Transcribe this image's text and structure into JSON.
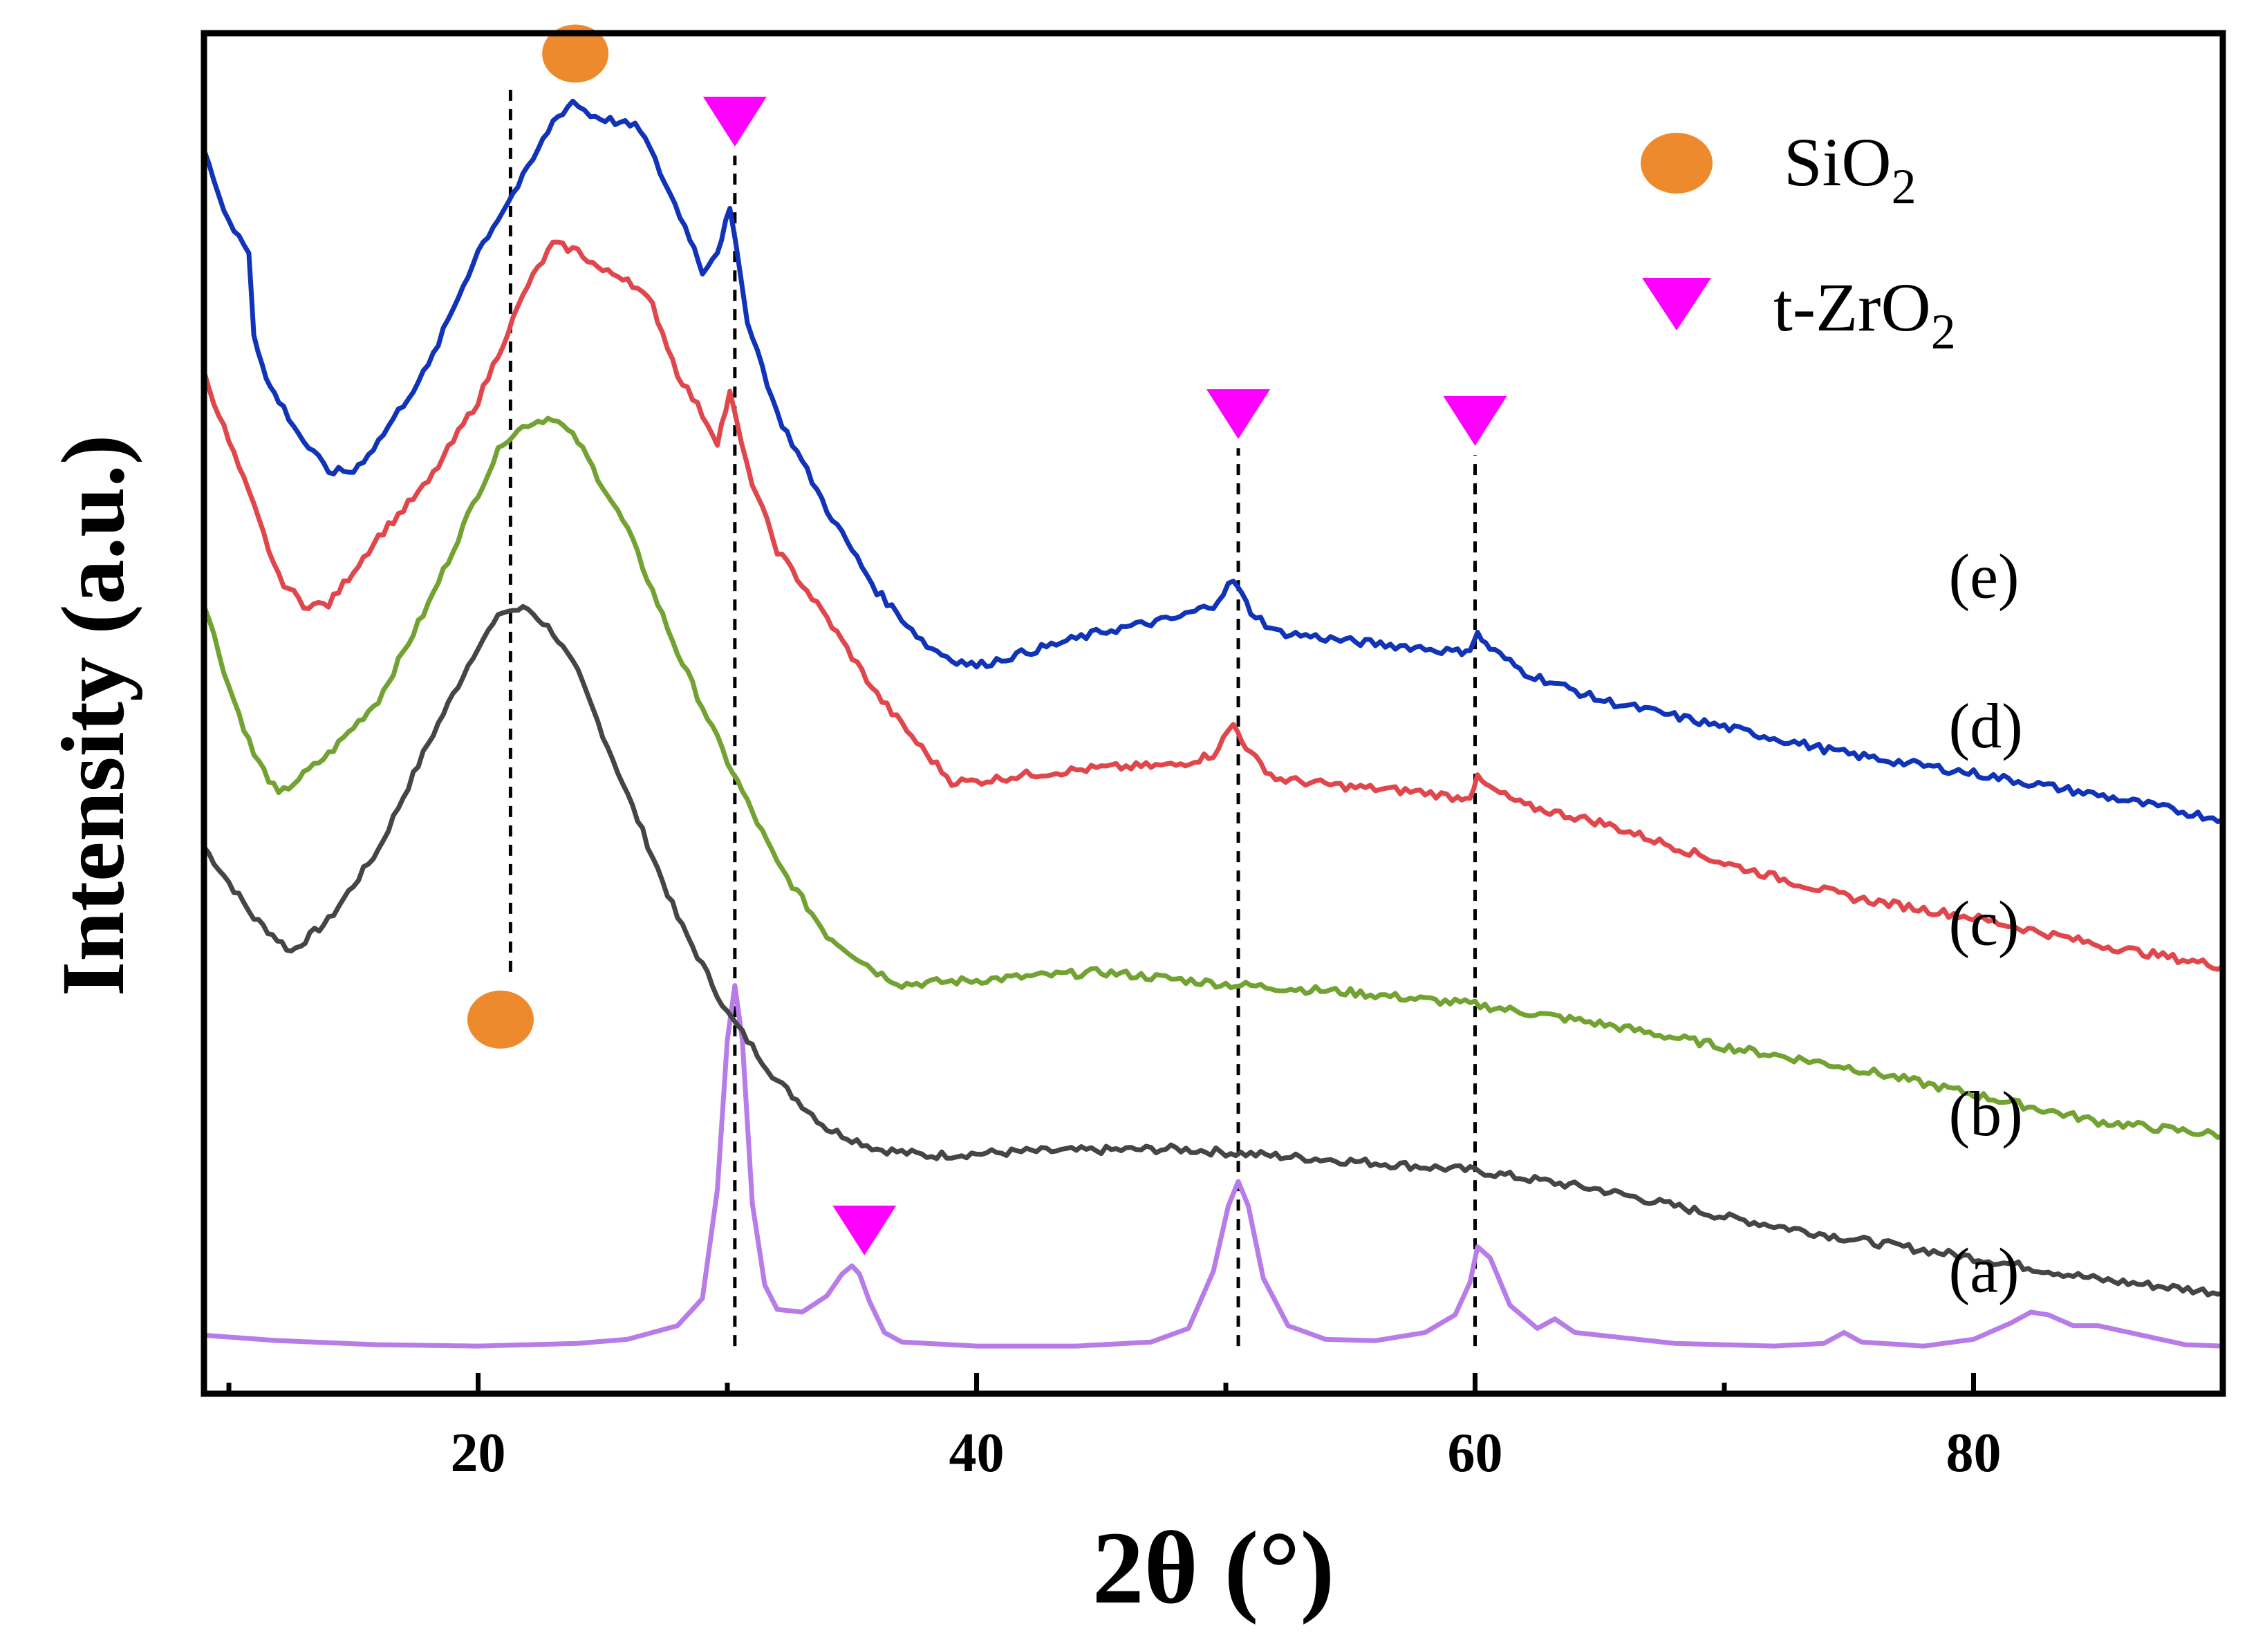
{
  "chart_data": {
    "type": "line",
    "title": "",
    "xlabel": "2θ (°)",
    "ylabel": "Intensity (a.u.)",
    "xlim": [
      9,
      90
    ],
    "ylim": [
      0,
      1
    ],
    "x_ticks": [
      20,
      40,
      60,
      80
    ],
    "x_tick_labels": [
      "20",
      "40",
      "60",
      "80"
    ],
    "y_ticks_visible": false,
    "legend": {
      "position": "top-right",
      "entries": [
        {
          "marker": "circle",
          "color": "#EE8A2E",
          "label_main": "SiO",
          "label_sub": "2"
        },
        {
          "marker": "triangle-down",
          "color": "#FF00FF",
          "label_main": "t-ZrO",
          "label_sub": "2"
        }
      ]
    },
    "colors": {
      "a": "#B77CE8",
      "b": "#454545",
      "c": "#72A332",
      "d": "#E0474C",
      "e": "#1133B8",
      "sio2_marker": "#EE8A2E",
      "zro2_marker": "#FF00FF",
      "frame": "#000000"
    },
    "series": [
      {
        "name": "(a)",
        "color": "#B77CE8",
        "x": [
          9,
          12,
          16,
          20,
          24,
          26,
          28,
          29,
          29.6,
          30,
          30.3,
          30.6,
          31,
          31.5,
          32,
          33,
          34,
          34.6,
          35,
          35.3,
          35.7,
          36.3,
          37,
          40,
          44,
          47,
          48.5,
          49.5,
          50.1,
          50.5,
          50.9,
          51.5,
          52.5,
          54,
          56,
          58,
          59.2,
          59.8,
          60.1,
          60.6,
          61.4,
          62.5,
          63.2,
          64,
          68,
          72,
          74,
          74.8,
          75.5,
          78,
          80,
          81.5,
          82.3,
          83,
          84,
          85,
          87,
          88.5,
          90
        ],
        "y": [
          0.043,
          0.039,
          0.036,
          0.035,
          0.037,
          0.04,
          0.05,
          0.07,
          0.15,
          0.26,
          0.3,
          0.26,
          0.14,
          0.08,
          0.062,
          0.06,
          0.072,
          0.088,
          0.094,
          0.088,
          0.068,
          0.045,
          0.038,
          0.035,
          0.035,
          0.038,
          0.048,
          0.09,
          0.138,
          0.156,
          0.138,
          0.085,
          0.05,
          0.04,
          0.039,
          0.045,
          0.058,
          0.082,
          0.108,
          0.1,
          0.065,
          0.048,
          0.055,
          0.045,
          0.037,
          0.035,
          0.037,
          0.045,
          0.038,
          0.035,
          0.04,
          0.052,
          0.06,
          0.058,
          0.05,
          0.05,
          0.042,
          0.036,
          0.035
        ]
      },
      {
        "name": "(b)",
        "color": "#454545",
        "x": [
          9,
          11,
          12.5,
          14,
          16,
          18,
          20,
          21,
          22,
          23,
          24,
          26,
          28,
          30,
          32,
          34,
          36,
          38,
          42,
          48,
          55,
          60,
          65,
          70,
          75,
          80,
          85,
          90
        ],
        "y": [
          0.402,
          0.35,
          0.325,
          0.348,
          0.4,
          0.478,
          0.55,
          0.575,
          0.577,
          0.56,
          0.53,
          0.44,
          0.35,
          0.28,
          0.23,
          0.195,
          0.18,
          0.175,
          0.178,
          0.18,
          0.171,
          0.164,
          0.15,
          0.13,
          0.114,
          0.1,
          0.084,
          0.074
        ]
      },
      {
        "name": "(c)",
        "color": "#72A332",
        "x": [
          9,
          10,
          11,
          12,
          13,
          14,
          16,
          18,
          20,
          21,
          22,
          23,
          24,
          26,
          28,
          30,
          32,
          34,
          36,
          37,
          40,
          45,
          50,
          55,
          60,
          65,
          70,
          75,
          80,
          85,
          90
        ],
        "y": [
          0.582,
          0.52,
          0.47,
          0.44,
          0.455,
          0.47,
          0.51,
          0.58,
          0.662,
          0.7,
          0.713,
          0.718,
          0.7,
          0.635,
          0.545,
          0.465,
          0.39,
          0.337,
          0.31,
          0.301,
          0.304,
          0.31,
          0.301,
          0.295,
          0.286,
          0.272,
          0.255,
          0.24,
          0.22,
          0.2,
          0.19
        ]
      },
      {
        "name": "(d)",
        "color": "#E0474C",
        "x": [
          9,
          10,
          11,
          12,
          13,
          14,
          16,
          18,
          20,
          22,
          23,
          24,
          25,
          26,
          27,
          28,
          29,
          29.6,
          30.1,
          30.8,
          32,
          34,
          36,
          38,
          39,
          40,
          42,
          45,
          48,
          49.5,
          50.3,
          51,
          52,
          55,
          58,
          59.3,
          59.8,
          60.1,
          60.6,
          62,
          65,
          70,
          75,
          80,
          85,
          90
        ],
        "y": [
          0.75,
          0.7,
          0.652,
          0.6,
          0.58,
          0.58,
          0.63,
          0.67,
          0.73,
          0.815,
          0.845,
          0.84,
          0.825,
          0.82,
          0.8,
          0.75,
          0.72,
          0.7,
          0.735,
          0.68,
          0.62,
          0.57,
          0.514,
          0.47,
          0.45,
          0.45,
          0.455,
          0.46,
          0.462,
          0.47,
          0.492,
          0.47,
          0.452,
          0.446,
          0.442,
          0.438,
          0.44,
          0.452,
          0.445,
          0.432,
          0.42,
          0.39,
          0.365,
          0.35,
          0.33,
          0.314
        ]
      },
      {
        "name": "(e)",
        "color": "#1133B8",
        "x": [
          9,
          10,
          10.8,
          11,
          11.5,
          12,
          13,
          14,
          15,
          16,
          18,
          20,
          21,
          22,
          23,
          23.8,
          24.5,
          25.5,
          26.5,
          27.5,
          28.5,
          29,
          29.6,
          30.1,
          30.8,
          32,
          34,
          36,
          38,
          39,
          40,
          42,
          45,
          48,
          49.5,
          50.3,
          51,
          52,
          55,
          58,
          59.3,
          59.8,
          60.1,
          60.6,
          62,
          65,
          70,
          75,
          80,
          85,
          90
        ],
        "y": [
          0.915,
          0.86,
          0.84,
          0.78,
          0.745,
          0.73,
          0.7,
          0.678,
          0.678,
          0.7,
          0.755,
          0.84,
          0.87,
          0.9,
          0.935,
          0.95,
          0.94,
          0.935,
          0.93,
          0.89,
          0.85,
          0.825,
          0.84,
          0.87,
          0.79,
          0.72,
          0.65,
          0.59,
          0.55,
          0.54,
          0.535,
          0.545,
          0.56,
          0.57,
          0.58,
          0.598,
          0.575,
          0.56,
          0.553,
          0.548,
          0.545,
          0.548,
          0.558,
          0.548,
          0.53,
          0.51,
          0.49,
          0.47,
          0.456,
          0.44,
          0.422
        ]
      }
    ],
    "curve_labels": [
      {
        "text": "(a)",
        "x": 79,
        "y": 0.075
      },
      {
        "text": "(b)",
        "x": 79,
        "y": 0.19
      },
      {
        "text": "(c)",
        "x": 79,
        "y": 0.33
      },
      {
        "text": "(d)",
        "x": 79,
        "y": 0.475
      },
      {
        "text": "(e)",
        "x": 79,
        "y": 0.585
      }
    ],
    "annotations": {
      "sio2_markers": [
        {
          "x": 23.9,
          "y": 0.985
        },
        {
          "x": 20.9,
          "y": 0.275
        }
      ],
      "zro2_markers": [
        {
          "x": 30.3,
          "y": 0.935
        },
        {
          "x": 50.5,
          "y": 0.72
        },
        {
          "x": 60.0,
          "y": 0.715
        },
        {
          "x": 35.5,
          "y": 0.12
        }
      ],
      "guide_lines": [
        {
          "x": 21.3,
          "y1": 0.31,
          "y2": 0.96
        },
        {
          "x": 30.3,
          "y1": 0.035,
          "y2": 0.91
        },
        {
          "x": 50.5,
          "y1": 0.035,
          "y2": 0.695
        },
        {
          "x": 60.0,
          "y1": 0.035,
          "y2": 0.69
        }
      ]
    }
  }
}
